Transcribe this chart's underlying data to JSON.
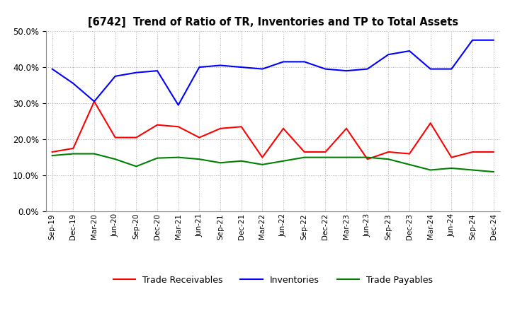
{
  "title": "[6742]  Trend of Ratio of TR, Inventories and TP to Total Assets",
  "x_labels": [
    "Sep-19",
    "Dec-19",
    "Mar-20",
    "Jun-20",
    "Sep-20",
    "Dec-20",
    "Mar-21",
    "Jun-21",
    "Sep-21",
    "Dec-21",
    "Mar-22",
    "Jun-22",
    "Sep-22",
    "Dec-22",
    "Mar-23",
    "Jun-23",
    "Sep-23",
    "Dec-23",
    "Mar-24",
    "Jun-24",
    "Sep-24",
    "Dec-24"
  ],
  "trade_receivables": [
    0.165,
    0.175,
    0.305,
    0.205,
    0.205,
    0.24,
    0.235,
    0.205,
    0.23,
    0.235,
    0.15,
    0.23,
    0.165,
    0.165,
    0.23,
    0.145,
    0.165,
    0.16,
    0.245,
    0.15,
    0.165,
    0.165
  ],
  "inventories": [
    0.395,
    0.355,
    0.305,
    0.375,
    0.385,
    0.39,
    0.295,
    0.4,
    0.405,
    0.4,
    0.395,
    0.415,
    0.415,
    0.395,
    0.39,
    0.395,
    0.435,
    0.445,
    0.395,
    0.395,
    0.475,
    0.475
  ],
  "trade_payables": [
    0.155,
    0.16,
    0.16,
    0.145,
    0.125,
    0.148,
    0.15,
    0.145,
    0.135,
    0.14,
    0.13,
    0.14,
    0.15,
    0.15,
    0.15,
    0.15,
    0.145,
    0.13,
    0.115,
    0.12,
    0.115,
    0.11
  ],
  "ylim": [
    0.0,
    0.5
  ],
  "yticks": [
    0.0,
    0.1,
    0.2,
    0.3,
    0.4,
    0.5
  ],
  "color_tr": "#ff0000",
  "color_inv": "#0000ff",
  "color_tp": "#008000",
  "background_color": "#ffffff",
  "grid_color": "#b0b0b0"
}
